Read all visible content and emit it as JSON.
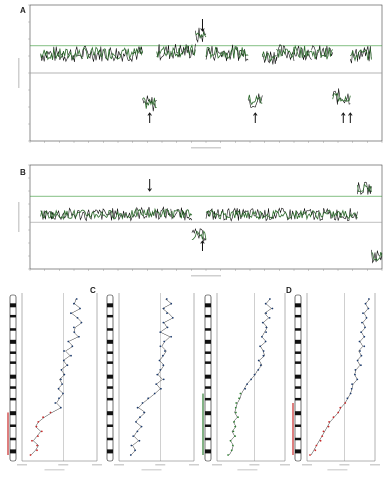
{
  "chart_data": [
    {
      "type": "line",
      "panel": "A",
      "kind": "genome-wide log2 copy-number ratio profile",
      "colors": {
        "trace": "#2e6b2e",
        "threshold": "#3a9a3a",
        "baseline": "#9a9a9a",
        "frame": "#444444",
        "noise": "#0a0a0a"
      },
      "segments": [
        {
          "x_range": [
            0.03,
            0.15
          ],
          "level": 0.55
        },
        {
          "x_range": [
            0.15,
            0.32
          ],
          "level": 0.58
        },
        {
          "x_range": [
            0.32,
            0.36
          ],
          "level": -0.9
        },
        {
          "x_range": [
            0.36,
            0.4
          ],
          "level": 0.62
        },
        {
          "x_range": [
            0.4,
            0.47
          ],
          "level": 0.65
        },
        {
          "x_range": [
            0.47,
            0.5
          ],
          "level": 1.1
        },
        {
          "x_range": [
            0.5,
            0.62
          ],
          "level": 0.6
        },
        {
          "x_range": [
            0.62,
            0.66
          ],
          "level": -0.8
        },
        {
          "x_range": [
            0.66,
            0.7
          ],
          "level": 0.5
        },
        {
          "x_range": [
            0.7,
            0.75
          ],
          "level": 0.6
        },
        {
          "x_range": [
            0.75,
            0.8
          ],
          "level": 0.63
        },
        {
          "x_range": [
            0.8,
            0.86
          ],
          "level": 0.58
        },
        {
          "x_range": [
            0.86,
            0.91
          ],
          "level": -0.7
        },
        {
          "x_range": [
            0.91,
            0.93
          ],
          "level": 0.5
        },
        {
          "x_range": [
            0.93,
            0.97
          ],
          "level": 0.55
        }
      ],
      "thresholds": [
        0.8,
        0.0
      ],
      "ylim": [
        -2,
        2
      ],
      "arrows": [
        {
          "x": 0.49,
          "direction": "down",
          "position": "above"
        },
        {
          "x": 0.34,
          "direction": "up",
          "position": "below"
        },
        {
          "x": 0.64,
          "direction": "up",
          "position": "below"
        },
        {
          "x": 0.89,
          "direction": "up",
          "position": "below"
        },
        {
          "x": 0.91,
          "direction": "up",
          "position": "below"
        }
      ]
    },
    {
      "type": "line",
      "panel": "B",
      "kind": "genome-wide log2 copy-number ratio profile",
      "colors": {
        "trace": "#2e6b2e",
        "threshold": "#3a9a3a",
        "baseline": "#9a9a9a",
        "frame": "#444444",
        "noise": "#0a0a0a"
      },
      "segments": [
        {
          "x_range": [
            0.03,
            0.3
          ],
          "level": 0.1
        },
        {
          "x_range": [
            0.3,
            0.4
          ],
          "level": 0.15
        },
        {
          "x_range": [
            0.4,
            0.46
          ],
          "level": 0.12
        },
        {
          "x_range": [
            0.46,
            0.5
          ],
          "level": -0.7
        },
        {
          "x_range": [
            0.5,
            0.93
          ],
          "level": 0.1
        },
        {
          "x_range": [
            0.93,
            0.97
          ],
          "level": 1.1
        },
        {
          "x_range": [
            0.97,
            1.0
          ],
          "level": -1.5
        }
      ],
      "thresholds": [
        0.8,
        -0.2
      ],
      "ylim": [
        -2,
        2
      ],
      "arrows": [
        {
          "x": 0.34,
          "direction": "down",
          "position": "above"
        },
        {
          "x": 0.49,
          "direction": "up",
          "position": "below"
        }
      ]
    },
    {
      "type": "scatter",
      "panel": "C",
      "kind": "chromosome zoom profiles with ideograms",
      "colors": {
        "points": "#1c3a6b",
        "gain": "#2e7d32",
        "loss": "#c62828",
        "band": "#111111"
      },
      "subplots": [
        {
          "profile": [
            0.72,
            0.7,
            0.78,
            0.66,
            0.74,
            0.8,
            0.71,
            0.69,
            0.75,
            0.62,
            0.68,
            0.58,
            0.64,
            0.55,
            0.6,
            0.52,
            0.57,
            0.5,
            0.54,
            0.48,
            0.55,
            0.5,
            0.46,
            0.52,
            0.4,
            0.3,
            0.22,
            0.18,
            0.25,
            0.2,
            0.15,
            0.22,
            0.18,
            0.12
          ],
          "highlight": [
            [
              24,
              33,
              "loss"
            ]
          ]
        },
        {
          "profile": [
            0.62,
            0.7,
            0.58,
            0.66,
            0.72,
            0.6,
            0.64,
            0.55,
            0.68,
            0.61,
            0.57,
            0.63,
            0.59,
            0.54,
            0.6,
            0.56,
            0.52,
            0.58,
            0.5,
            0.55,
            0.48,
            0.4,
            0.32,
            0.26,
            0.35,
            0.28,
            0.22,
            0.3,
            0.24,
            0.2,
            0.26,
            0.18,
            0.22,
            0.16
          ],
          "highlight": []
        }
      ]
    },
    {
      "type": "scatter",
      "panel": "D",
      "kind": "chromosome zoom profiles with ideograms",
      "colors": {
        "points": "#1c3a6b",
        "gain": "#2e7d32",
        "loss": "#c62828",
        "band": "#111111"
      },
      "subplots": [
        {
          "profile": [
            0.78,
            0.72,
            0.8,
            0.7,
            0.76,
            0.68,
            0.74,
            0.7,
            0.66,
            0.72,
            0.64,
            0.68,
            0.7,
            0.62,
            0.66,
            0.6,
            0.56,
            0.5,
            0.44,
            0.4,
            0.36,
            0.34,
            0.3,
            0.28,
            0.26,
            0.3,
            0.24,
            0.28,
            0.22,
            0.26,
            0.2,
            0.24,
            0.22,
            0.18
          ],
          "highlight": [
            [
              20,
              33,
              "gain"
            ]
          ]
        },
        {
          "profile": [
            0.92,
            0.86,
            0.9,
            0.84,
            0.88,
            0.82,
            0.86,
            0.8,
            0.84,
            0.78,
            0.82,
            0.76,
            0.8,
            0.74,
            0.78,
            0.72,
            0.7,
            0.74,
            0.68,
            0.66,
            0.64,
            0.6,
            0.56,
            0.5,
            0.46,
            0.4,
            0.34,
            0.3,
            0.26,
            0.22,
            0.18,
            0.14,
            0.1,
            0.06
          ],
          "highlight": [
            [
              22,
              33,
              "loss"
            ]
          ]
        }
      ]
    }
  ],
  "labels": {
    "a": "A",
    "b": "B",
    "c": "C",
    "d": "D"
  }
}
